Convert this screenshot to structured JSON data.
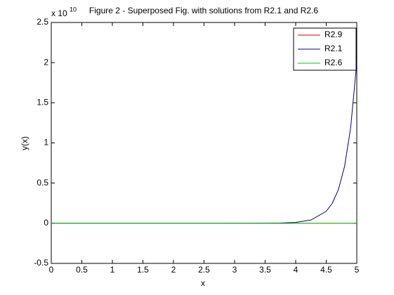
{
  "chart_data": {
    "type": "line",
    "title": "Figure 2 - Superposed Fig. with solutions from R2.1 and R2.6",
    "x_label": "x",
    "y_label": "y(x)",
    "y_multiplier": "x 10",
    "y_multiplier_exp": "10",
    "series": [
      {
        "name": "R2.9",
        "color": "#cc0000",
        "x": [
          0,
          5
        ],
        "values": [
          0,
          0
        ]
      },
      {
        "name": "R2.1",
        "color": "#000080",
        "x": [
          0,
          1,
          2,
          3,
          3.5,
          3.75,
          4,
          4.25,
          4.5,
          4.6,
          4.7,
          4.8,
          4.9,
          5
        ],
        "values": [
          0,
          0,
          0,
          0,
          0.0008,
          0.003,
          0.011,
          0.04,
          0.149,
          0.25,
          0.42,
          0.707,
          1.19,
          2.0
        ]
      },
      {
        "name": "R2.6",
        "color": "#00cc00",
        "x": [
          0,
          5
        ],
        "values": [
          0,
          0
        ]
      }
    ],
    "xlim": [
      0,
      5
    ],
    "xticks": [
      0,
      0.5,
      1,
      1.5,
      2,
      2.5,
      3,
      3.5,
      4,
      4.5,
      5
    ],
    "ylim": [
      -0.5,
      2.5
    ],
    "yticks": [
      -0.5,
      0,
      0.5,
      1,
      1.5,
      2,
      2.5
    ],
    "grid": false,
    "legend": "upper right"
  }
}
